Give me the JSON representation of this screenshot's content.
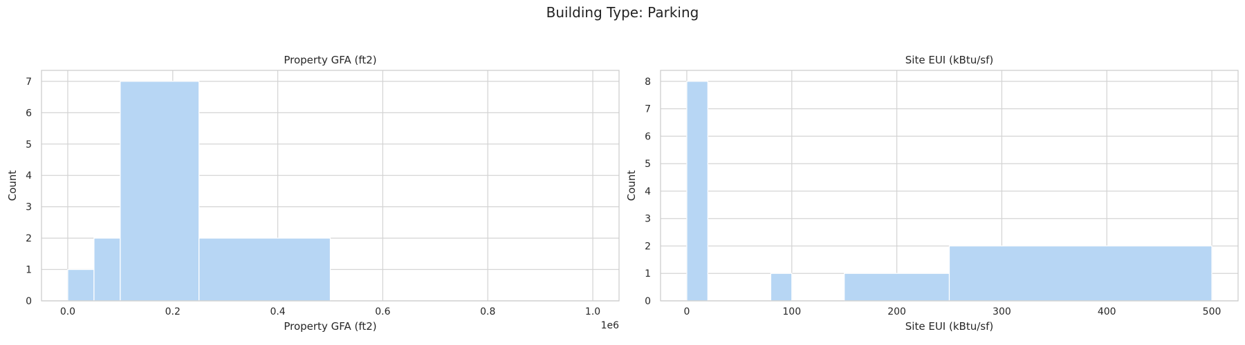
{
  "suptitle": "Building Type: Parking",
  "chart_data": [
    {
      "type": "bar",
      "title": "Property GFA (ft2)",
      "xlabel": "Property GFA (ft2)",
      "ylabel": "Count",
      "offset_text": "1e6",
      "xlim": [
        -0.05,
        1.05
      ],
      "ylim": [
        0,
        7.35
      ],
      "xticks": [
        0.0,
        0.2,
        0.4,
        0.6,
        0.8,
        1.0
      ],
      "xtick_labels": [
        "0.0",
        "0.2",
        "0.4",
        "0.6",
        "0.8",
        "1.0"
      ],
      "yticks": [
        0,
        1,
        2,
        3,
        4,
        5,
        6,
        7
      ],
      "bins": [
        {
          "x0": 0.0,
          "x1": 0.05,
          "count": 1
        },
        {
          "x0": 0.05,
          "x1": 0.1,
          "count": 2
        },
        {
          "x0": 0.1,
          "x1": 0.25,
          "count": 7
        },
        {
          "x0": 0.25,
          "x1": 0.5,
          "count": 2
        },
        {
          "x0": 0.5,
          "x1": 1.0,
          "count": 0
        }
      ]
    },
    {
      "type": "bar",
      "title": "Site EUI (kBtu/sf)",
      "xlabel": "Site EUI (kBtu/sf)",
      "ylabel": "Count",
      "offset_text": "",
      "xlim": [
        -25,
        525
      ],
      "ylim": [
        0,
        8.4
      ],
      "xticks": [
        0,
        100,
        200,
        300,
        400,
        500
      ],
      "xtick_labels": [
        "0",
        "100",
        "200",
        "300",
        "400",
        "500"
      ],
      "yticks": [
        0,
        1,
        2,
        3,
        4,
        5,
        6,
        7,
        8
      ],
      "bins": [
        {
          "x0": 0,
          "x1": 20,
          "count": 8
        },
        {
          "x0": 20,
          "x1": 80,
          "count": 0
        },
        {
          "x0": 80,
          "x1": 100,
          "count": 1
        },
        {
          "x0": 100,
          "x1": 150,
          "count": 0
        },
        {
          "x0": 150,
          "x1": 250,
          "count": 1
        },
        {
          "x0": 250,
          "x1": 500,
          "count": 2
        }
      ]
    }
  ]
}
